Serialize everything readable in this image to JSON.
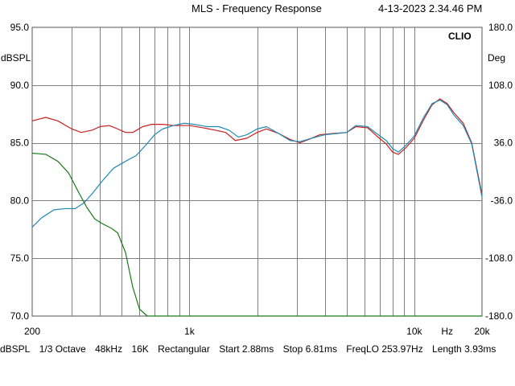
{
  "header": {
    "title": "MLS - Frequency Response",
    "timestamp": "4-13-2023 2.34.46 PM"
  },
  "brand": "CLIO",
  "footer": {
    "items": [
      "dBSPL",
      "1/3 Octave",
      "48kHz",
      "16K",
      "Rectangular",
      "Start 2.88ms",
      "Stop 6.81ms",
      "FreqLO 253.97Hz",
      "Length 3.93ms"
    ]
  },
  "colors": {
    "grid": "#7f7f7f",
    "series_red": "#cc1f1f",
    "series_blue": "#1e8bb4",
    "series_green": "#1a7a1a"
  },
  "chart_data": {
    "type": "line",
    "x_scale": "log",
    "xlim": [
      200,
      20000
    ],
    "ylim": [
      70,
      95
    ],
    "y2lim": [
      -180,
      180
    ],
    "ylabel": "dBSPL",
    "y2label": "Deg",
    "x_ticks": [
      {
        "value": 200,
        "label": "200"
      },
      {
        "value": 1000,
        "label": "1k"
      },
      {
        "value": 10000,
        "label": "10k"
      },
      {
        "value": 14000,
        "label": "Hz"
      },
      {
        "value": 20000,
        "label": "20k"
      }
    ],
    "y_ticks": [
      {
        "value": 95,
        "label": "95.0"
      },
      {
        "value": 90,
        "label": "90.0"
      },
      {
        "value": 85,
        "label": "85.0"
      },
      {
        "value": 80,
        "label": "80.0"
      },
      {
        "value": 75,
        "label": "75.0"
      },
      {
        "value": 70,
        "label": "70.0"
      }
    ],
    "y2_ticks": [
      {
        "value": 180,
        "label": "180.0"
      },
      {
        "value": 108,
        "label": "108.0"
      },
      {
        "value": 36,
        "label": "36.0"
      },
      {
        "value": -36,
        "label": "-36.0"
      },
      {
        "value": -108,
        "label": "-108.0"
      },
      {
        "value": -180,
        "label": "-180.0"
      }
    ],
    "series": [
      {
        "color": "#cc1f1f",
        "points": [
          [
            200,
            86.9
          ],
          [
            230,
            87.2
          ],
          [
            260,
            86.9
          ],
          [
            300,
            86.2
          ],
          [
            330,
            85.9
          ],
          [
            370,
            86.1
          ],
          [
            400,
            86.4
          ],
          [
            440,
            86.5
          ],
          [
            480,
            86.2
          ],
          [
            520,
            85.9
          ],
          [
            560,
            85.9
          ],
          [
            620,
            86.4
          ],
          [
            680,
            86.6
          ],
          [
            760,
            86.6
          ],
          [
            850,
            86.5
          ],
          [
            1000,
            86.5
          ],
          [
            1150,
            86.3
          ],
          [
            1300,
            86.1
          ],
          [
            1450,
            85.9
          ],
          [
            1600,
            85.2
          ],
          [
            1800,
            85.4
          ],
          [
            2000,
            85.9
          ],
          [
            2200,
            86.2
          ],
          [
            2500,
            85.8
          ],
          [
            2800,
            85.3
          ],
          [
            3100,
            85.0
          ],
          [
            3400,
            85.3
          ],
          [
            3800,
            85.7
          ],
          [
            4300,
            85.8
          ],
          [
            5000,
            85.9
          ],
          [
            5500,
            86.4
          ],
          [
            6200,
            86.3
          ],
          [
            6800,
            85.6
          ],
          [
            7500,
            84.9
          ],
          [
            8000,
            84.2
          ],
          [
            8500,
            84.0
          ],
          [
            9200,
            84.6
          ],
          [
            10000,
            85.4
          ],
          [
            11000,
            87.0
          ],
          [
            12000,
            88.3
          ],
          [
            13000,
            88.8
          ],
          [
            14000,
            88.4
          ],
          [
            15000,
            87.6
          ],
          [
            16500,
            86.7
          ],
          [
            18000,
            85.0
          ],
          [
            20000,
            80.5
          ]
        ]
      },
      {
        "color": "#1e8bb4",
        "points": [
          [
            200,
            77.7
          ],
          [
            220,
            78.5
          ],
          [
            250,
            79.2
          ],
          [
            280,
            79.3
          ],
          [
            310,
            79.3
          ],
          [
            340,
            79.8
          ],
          [
            370,
            80.6
          ],
          [
            410,
            81.7
          ],
          [
            460,
            82.8
          ],
          [
            520,
            83.4
          ],
          [
            580,
            83.9
          ],
          [
            640,
            84.8
          ],
          [
            700,
            85.7
          ],
          [
            760,
            86.2
          ],
          [
            850,
            86.5
          ],
          [
            950,
            86.7
          ],
          [
            1050,
            86.6
          ],
          [
            1200,
            86.4
          ],
          [
            1350,
            86.4
          ],
          [
            1500,
            86.1
          ],
          [
            1650,
            85.5
          ],
          [
            1800,
            85.7
          ],
          [
            2000,
            86.2
          ],
          [
            2200,
            86.4
          ],
          [
            2500,
            85.8
          ],
          [
            2800,
            85.2
          ],
          [
            3100,
            85.1
          ],
          [
            3500,
            85.4
          ],
          [
            4000,
            85.7
          ],
          [
            4500,
            85.8
          ],
          [
            5000,
            85.9
          ],
          [
            5500,
            86.5
          ],
          [
            6200,
            86.4
          ],
          [
            6800,
            85.8
          ],
          [
            7500,
            85.2
          ],
          [
            8000,
            84.5
          ],
          [
            8500,
            84.2
          ],
          [
            9200,
            84.8
          ],
          [
            10000,
            85.6
          ],
          [
            11000,
            87.2
          ],
          [
            12000,
            88.4
          ],
          [
            13000,
            88.7
          ],
          [
            14000,
            88.3
          ],
          [
            15000,
            87.4
          ],
          [
            16500,
            86.5
          ],
          [
            18000,
            84.9
          ],
          [
            20000,
            80.3
          ]
        ]
      },
      {
        "color": "#1a7a1a",
        "points": [
          [
            200,
            84.1
          ],
          [
            230,
            84.0
          ],
          [
            260,
            83.4
          ],
          [
            290,
            82.4
          ],
          [
            320,
            80.8
          ],
          [
            350,
            79.4
          ],
          [
            380,
            78.4
          ],
          [
            410,
            78.0
          ],
          [
            450,
            77.6
          ],
          [
            480,
            77.2
          ],
          [
            520,
            75.5
          ],
          [
            560,
            72.5
          ],
          [
            600,
            70.6
          ],
          [
            650,
            70.0
          ],
          [
            700,
            70.0
          ],
          [
            1000,
            70.0
          ],
          [
            5000,
            70.0
          ],
          [
            20000,
            70.0
          ]
        ]
      }
    ]
  }
}
